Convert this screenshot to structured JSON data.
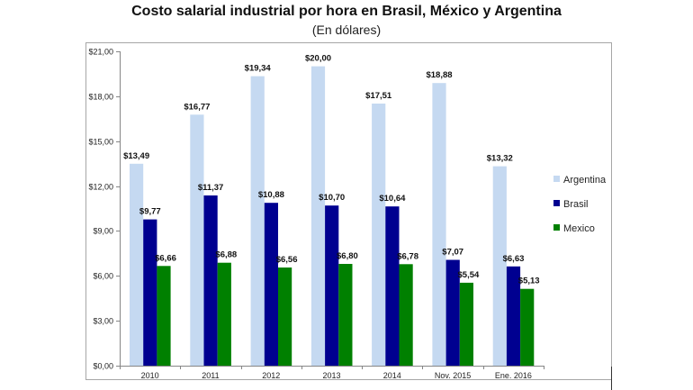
{
  "chart_data": {
    "type": "bar",
    "title": "Costo salarial industrial por hora en Brasil, México y Argentina",
    "subtitle": "(En dólares)",
    "xlabel": "",
    "ylabel": "",
    "ylim": [
      0,
      21
    ],
    "yticks": [
      0,
      3,
      6,
      9,
      12,
      15,
      18,
      21
    ],
    "ytick_labels": [
      "$0,00",
      "$3,00",
      "$6,00",
      "$9,00",
      "$12,00",
      "$15,00",
      "$18,00",
      "$21,00"
    ],
    "categories": [
      "2010",
      "2011",
      "2012",
      "2013",
      "2014",
      "Nov. 2015",
      "Ene. 2016"
    ],
    "legend_position": "right",
    "grid": false,
    "series": [
      {
        "name": "Argentina",
        "color": "#c5d9f1",
        "values": [
          13.49,
          16.77,
          19.34,
          20.0,
          17.51,
          18.88,
          13.32
        ],
        "labels": [
          "$13,49",
          "$16,77",
          "$19,34",
          "$20,00",
          "$17,51",
          "$18,88",
          "$13,32"
        ]
      },
      {
        "name": "Brasil",
        "color": "#000090",
        "values": [
          9.77,
          11.37,
          10.88,
          10.7,
          10.64,
          7.07,
          6.63
        ],
        "labels": [
          "$9,77",
          "$11,37",
          "$10,88",
          "$10,70",
          "$10,64",
          "$7,07",
          "$6,63"
        ]
      },
      {
        "name": "Mexico",
        "color": "#008000",
        "values": [
          6.66,
          6.88,
          6.56,
          6.8,
          6.78,
          5.54,
          5.13
        ],
        "labels": [
          "$6,66",
          "$6,88",
          "$6,56",
          "$6,80",
          "$6,78",
          "$5,54",
          "$5,13"
        ]
      }
    ]
  }
}
